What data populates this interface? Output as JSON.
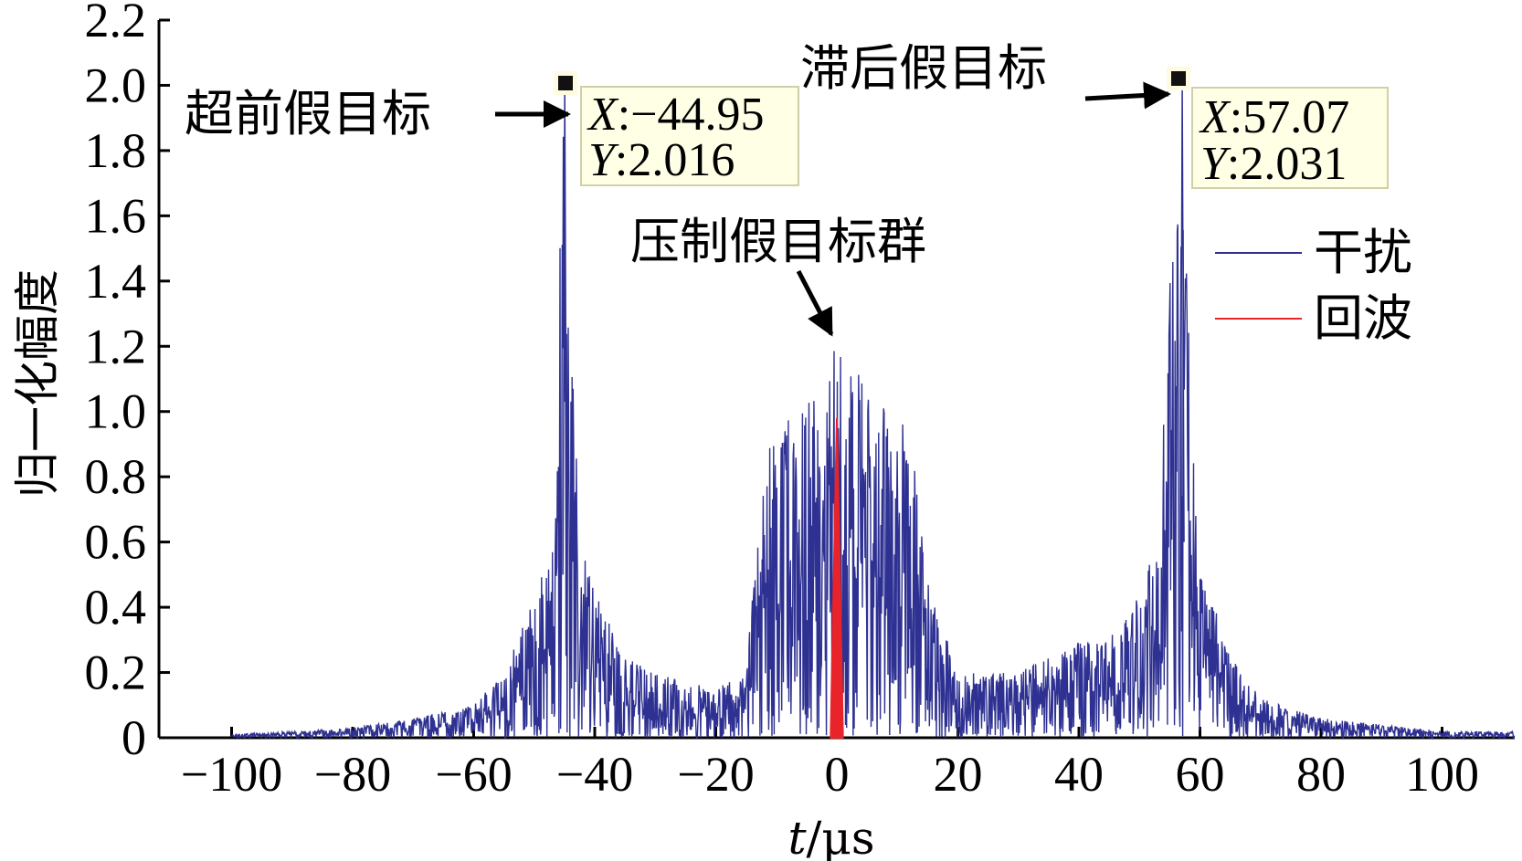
{
  "chart_data": {
    "type": "line",
    "xlabel_italic": "t",
    "xlabel_unit": "/μs",
    "ylabel": "归一化幅度",
    "xlim": [
      -112,
      112
    ],
    "ylim": [
      0,
      2.2
    ],
    "x_ticks": [
      -100,
      -80,
      -60,
      -40,
      -20,
      0,
      20,
      40,
      60,
      80,
      100
    ],
    "x_tick_labels": [
      "−100",
      "−80",
      "−60",
      "−40",
      "−20",
      "0",
      "20",
      "40",
      "60",
      "80",
      "100"
    ],
    "y_ticks": [
      0,
      0.2,
      0.4,
      0.6,
      0.8,
      1.0,
      1.2,
      1.4,
      1.6,
      1.8,
      2.0,
      2.2
    ],
    "y_tick_labels": [
      "0",
      "0.2",
      "0.4",
      "0.6",
      "0.8",
      "1.0",
      "1.2",
      "1.4",
      "1.6",
      "1.8",
      "2.0",
      "2.2"
    ],
    "legend_position": "right",
    "series": [
      {
        "name": "干扰",
        "color": "#2e3192",
        "description_points": {
          "x": [
            -100,
            -80,
            -70,
            -60,
            -55,
            -50,
            -47,
            -46,
            -45.5,
            -44.95,
            -44.5,
            -44,
            -43,
            -42,
            -40,
            -35,
            -30,
            -20,
            -15,
            -12,
            -10,
            -5,
            0,
            5,
            10,
            12,
            15,
            20,
            30,
            40,
            45,
            50,
            53,
            55,
            56,
            56.5,
            57.07,
            57.5,
            58,
            59,
            60,
            65,
            70,
            80,
            100
          ],
          "y": [
            0.01,
            0.03,
            0.06,
            0.1,
            0.2,
            0.43,
            0.6,
            1.38,
            1.78,
            2.016,
            1.62,
            1.2,
            0.9,
            0.6,
            0.45,
            0.25,
            0.2,
            0.15,
            0.2,
            0.85,
            0.95,
            1.05,
            1.2,
            1.1,
            0.97,
            0.95,
            0.5,
            0.2,
            0.2,
            0.3,
            0.3,
            0.45,
            0.6,
            1.4,
            1.66,
            1.85,
            2.031,
            1.7,
            1.45,
            0.9,
            0.55,
            0.25,
            0.12,
            0.06,
            0.02
          ]
        }
      },
      {
        "name": "回波",
        "color": "#e8242a",
        "description_points": {
          "x": [
            -1,
            0,
            1
          ],
          "y": [
            0.02,
            0.98,
            0.02
          ]
        }
      }
    ],
    "datatips": [
      {
        "x_label": "X",
        "x_value": ":−44.95",
        "y_label": "Y",
        "y_value": ":2.016",
        "x": -44.95,
        "y": 2.016
      },
      {
        "x_label": "X",
        "x_value": ":57.07",
        "y_label": "Y",
        "y_value": ":2.031",
        "x": 57.07,
        "y": 2.031
      }
    ],
    "annotations": [
      {
        "text": "超前假目标"
      },
      {
        "text": "滞后假目标"
      },
      {
        "text": "压制假目标群"
      }
    ]
  }
}
